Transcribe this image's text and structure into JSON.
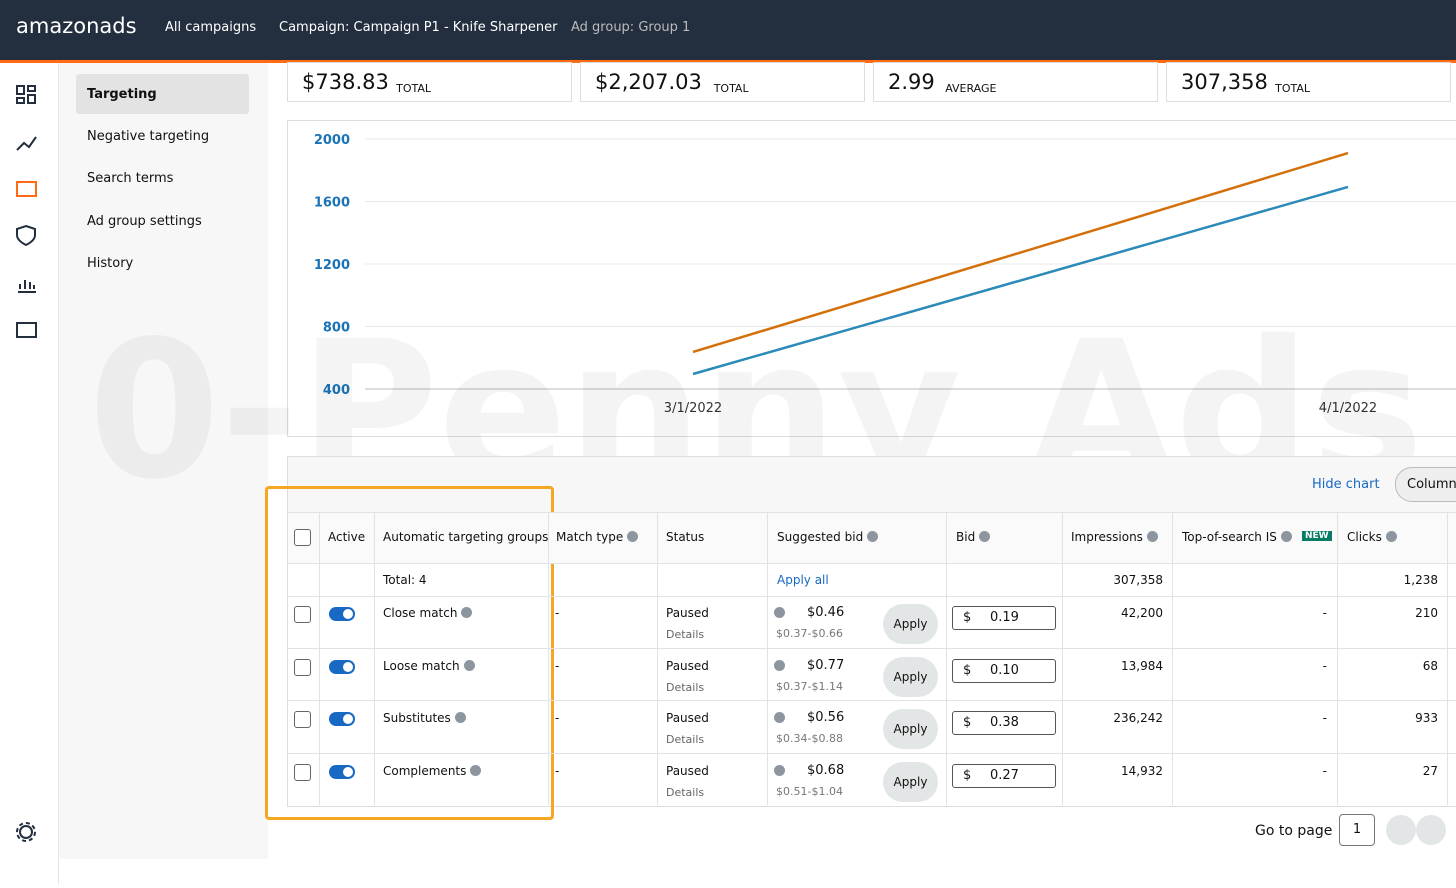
{
  "header": {
    "logo": "amazonads",
    "breadcrumbs": [
      "All campaigns",
      "Campaign: Campaign P1 - Knife Sharpener",
      "Ad group: Group 1"
    ]
  },
  "sidebar": [
    "Targeting",
    "Negative targeting",
    "Search terms",
    "Ad group settings",
    "History"
  ],
  "metrics": [
    {
      "value": "$738.83",
      "label": "TOTAL"
    },
    {
      "value": "$2,207.03",
      "label": "TOTAL"
    },
    {
      "value": "2.99",
      "label": "AVERAGE"
    },
    {
      "value": "307,358",
      "label": "TOTAL"
    }
  ],
  "chart": {
    "type": "line",
    "x": [
      "3/1/2022",
      "4/1/2022"
    ],
    "ylim": [
      400,
      2000
    ],
    "yticks": [
      400,
      800,
      1200,
      1600,
      2000
    ],
    "grid": true,
    "series": [
      {
        "color": "#d4700a",
        "values": [
          637,
          1910
        ]
      },
      {
        "color": "#2a8ab8",
        "values": [
          496,
          1693
        ]
      }
    ]
  },
  "watermark": "0-Penny Ads",
  "table": {
    "hide_chart": "Hide chart",
    "columns_button": "Columns",
    "headers": [
      "Active",
      "Automatic targeting groups",
      "Match type",
      "Status",
      "Suggested bid",
      "Bid",
      "Impressions",
      "Top-of-search IS",
      "Clicks"
    ],
    "new_badge": "NEW",
    "total_label": "Total: 4",
    "apply_all": "Apply all",
    "total_impressions": "307,358",
    "total_clicks": "1,238",
    "currency": "$",
    "details": "Details",
    "apply": "Apply",
    "rows": [
      {
        "name": "Close match",
        "match": "-",
        "status": "Paused",
        "suggested": "$0.46",
        "range": "$0.37-$0.66",
        "bid": "0.19",
        "impressions": "42,200",
        "top": "-",
        "clicks": "210"
      },
      {
        "name": "Loose match",
        "match": "-",
        "status": "Paused",
        "suggested": "$0.77",
        "range": "$0.37-$1.14",
        "bid": "0.10",
        "impressions": "13,984",
        "top": "-",
        "clicks": "68"
      },
      {
        "name": "Substitutes",
        "match": "-",
        "status": "Paused",
        "suggested": "$0.56",
        "range": "$0.34-$0.88",
        "bid": "0.38",
        "impressions": "236,242",
        "top": "-",
        "clicks": "933"
      },
      {
        "name": "Complements",
        "match": "-",
        "status": "Paused",
        "suggested": "$0.68",
        "range": "$0.51-$1.04",
        "bid": "0.27",
        "impressions": "14,932",
        "top": "-",
        "clicks": "27"
      }
    ]
  },
  "pagination": {
    "label": "Go to page",
    "page": "1"
  }
}
